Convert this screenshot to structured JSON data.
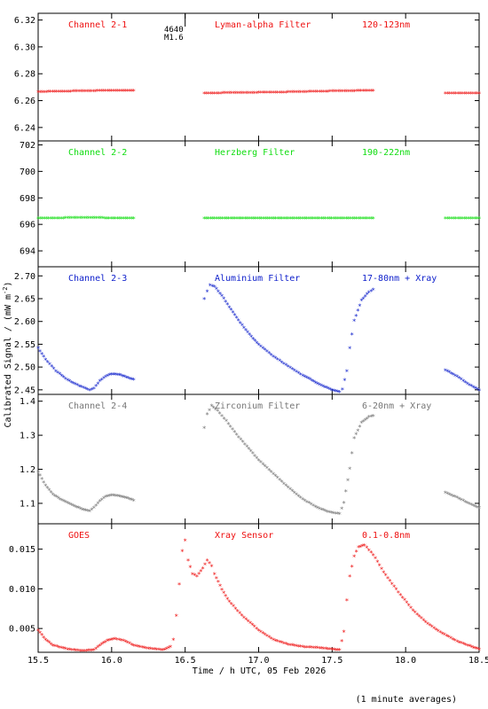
{
  "chart_data": {
    "type": "scatter",
    "xlabel": "Time / h UTC, 05 Feb 2026",
    "ylabel": "Calibrated Signal / (mW m",
    "ylabel_sup": "-2",
    "ylabel_close": ")",
    "footnote": "(1 minute averages)",
    "xlim": [
      15.5,
      18.5
    ],
    "x_ticks": [
      "15.5",
      "16.0",
      "16.5",
      "17.0",
      "17.5",
      "18.0",
      "18.5"
    ],
    "marker": {
      "line1": "4640",
      "line2": "M1.6",
      "x": 16.5
    },
    "panels": [
      {
        "name": "channel-2-1",
        "labels": [
          "Channel 2-1",
          "Lyman-alpha Filter",
          "120-123nm"
        ],
        "color": "#ee1111",
        "ylim": [
          6.23,
          6.325
        ],
        "y_ticks": [
          "6.24",
          "6.26",
          "6.28",
          "6.30",
          "6.32"
        ],
        "segments": [
          {
            "x": [
              15.5,
              15.75,
              16.0,
              16.15
            ],
            "y": [
              6.266,
              6.2665,
              6.267,
              6.267
            ]
          },
          {
            "x": [
              16.63,
              16.9,
              17.2,
              17.5,
              17.78
            ],
            "y": [
              6.265,
              6.2653,
              6.2658,
              6.2665,
              6.267
            ]
          },
          {
            "x": [
              18.27,
              18.5
            ],
            "y": [
              6.265,
              6.265
            ]
          }
        ]
      },
      {
        "name": "channel-2-2",
        "labels": [
          "Channel 2-2",
          "Herzberg Filter",
          "190-222nm"
        ],
        "color": "#11dd11",
        "ylim": [
          692.8,
          702.3
        ],
        "y_ticks": [
          "694",
          "696",
          "698",
          "700",
          "702"
        ],
        "segments": [
          {
            "x": [
              15.5,
              15.8,
              16.15
            ],
            "y": [
              696.4,
              696.45,
              696.4
            ]
          },
          {
            "x": [
              16.63,
              17.2,
              17.78
            ],
            "y": [
              696.4,
              696.4,
              696.4
            ]
          },
          {
            "x": [
              18.27,
              18.5
            ],
            "y": [
              696.4,
              696.4
            ]
          }
        ]
      },
      {
        "name": "channel-2-3",
        "labels": [
          "Channel 2-3",
          "Aluminium Filter",
          "17-80nm + Xray"
        ],
        "color": "#1122cc",
        "ylim": [
          2.44,
          2.72
        ],
        "y_ticks": [
          "2.45",
          "2.50",
          "2.55",
          "2.60",
          "2.65",
          "2.70"
        ],
        "segments": [
          {
            "x": [
              15.5,
              15.55,
              15.62,
              15.7,
              15.78,
              15.85,
              15.88,
              15.92,
              15.96,
              16.0,
              16.05,
              16.1,
              16.15
            ],
            "y": [
              2.54,
              2.515,
              2.49,
              2.47,
              2.457,
              2.448,
              2.452,
              2.468,
              2.478,
              2.483,
              2.482,
              2.476,
              2.471
            ]
          },
          {
            "x": [
              16.63,
              16.65,
              16.67,
              16.7,
              16.75,
              16.8,
              16.85,
              16.9,
              16.95,
              17.0,
              17.1,
              17.2,
              17.3,
              17.35,
              17.4,
              17.45,
              17.5,
              17.55,
              17.57,
              17.6,
              17.62,
              17.65,
              17.7,
              17.75,
              17.78
            ],
            "y": [
              2.648,
              2.665,
              2.678,
              2.675,
              2.655,
              2.63,
              2.607,
              2.585,
              2.565,
              2.548,
              2.522,
              2.5,
              2.48,
              2.472,
              2.462,
              2.455,
              2.448,
              2.444,
              2.45,
              2.49,
              2.54,
              2.6,
              2.645,
              2.663,
              2.668
            ]
          },
          {
            "x": [
              18.27,
              18.35,
              18.42,
              18.5
            ],
            "y": [
              2.492,
              2.478,
              2.462,
              2.448
            ]
          }
        ]
      },
      {
        "name": "channel-2-4",
        "labels": [
          "Channel 2-4",
          "Zirconium Filter",
          "6-20nm + Xray"
        ],
        "color": "#777777",
        "ylim": [
          1.04,
          1.42
        ],
        "y_ticks": [
          "1.1",
          "1.2",
          "1.3",
          "1.4"
        ],
        "segments": [
          {
            "x": [
              15.5,
              15.55,
              15.6,
              15.65,
              15.7,
              15.75,
              15.8,
              15.85,
              15.88,
              15.92,
              15.96,
              16.0,
              16.05,
              16.1,
              16.15
            ],
            "y": [
              1.19,
              1.15,
              1.125,
              1.11,
              1.1,
              1.09,
              1.08,
              1.075,
              1.085,
              1.105,
              1.118,
              1.122,
              1.12,
              1.114,
              1.107
            ]
          },
          {
            "x": [
              16.63,
              16.65,
              16.68,
              16.72,
              16.78,
              16.85,
              16.92,
              17.0,
              17.1,
              17.2,
              17.3,
              17.4,
              17.48,
              17.55,
              17.58,
              17.62,
              17.65,
              17.7,
              17.75,
              17.78
            ],
            "y": [
              1.32,
              1.36,
              1.385,
              1.37,
              1.34,
              1.3,
              1.265,
              1.225,
              1.185,
              1.145,
              1.11,
              1.085,
              1.072,
              1.067,
              1.1,
              1.2,
              1.29,
              1.335,
              1.352,
              1.355
            ]
          },
          {
            "x": [
              18.27,
              18.35,
              18.42,
              18.5
            ],
            "y": [
              1.13,
              1.115,
              1.1,
              1.085
            ]
          }
        ]
      },
      {
        "name": "goes",
        "labels": [
          "GOES",
          "Xray Sensor",
          "0.1-0.8nm"
        ],
        "color": "#ee1111",
        "ylim": [
          0.002,
          0.0182
        ],
        "y_ticks": [
          "0.005",
          "0.010",
          "0.015"
        ],
        "segments": [
          {
            "x": [
              15.5,
              15.55,
              15.6,
              15.7,
              15.8,
              15.88,
              15.92,
              15.97,
              16.02,
              16.08,
              16.15,
              16.25,
              16.35,
              16.4,
              16.42,
              16.44,
              16.46,
              16.48,
              16.5,
              16.52,
              16.55,
              16.58,
              16.62,
              16.65,
              16.68,
              16.7,
              16.75,
              16.8,
              16.9,
              17.0,
              17.1,
              17.2,
              17.3,
              17.4,
              17.5,
              17.55,
              17.58,
              17.6,
              17.62,
              17.65,
              17.68,
              17.72,
              17.78,
              17.85,
              17.95,
              18.05,
              18.15,
              18.25,
              18.35,
              18.45,
              18.5
            ],
            "y": [
              0.0047,
              0.0035,
              0.0028,
              0.0023,
              0.0021,
              0.0022,
              0.0028,
              0.0034,
              0.0036,
              0.0034,
              0.0028,
              0.0024,
              0.0022,
              0.0026,
              0.0035,
              0.0065,
              0.0105,
              0.0147,
              0.016,
              0.0135,
              0.0118,
              0.0115,
              0.0125,
              0.0135,
              0.0128,
              0.0118,
              0.0098,
              0.0083,
              0.0063,
              0.0047,
              0.0035,
              0.0029,
              0.0026,
              0.0025,
              0.0023,
              0.0022,
              0.0045,
              0.0085,
              0.0115,
              0.014,
              0.0152,
              0.0154,
              0.0142,
              0.012,
              0.0095,
              0.0072,
              0.0055,
              0.0043,
              0.0033,
              0.0026,
              0.0023
            ]
          }
        ]
      }
    ]
  }
}
